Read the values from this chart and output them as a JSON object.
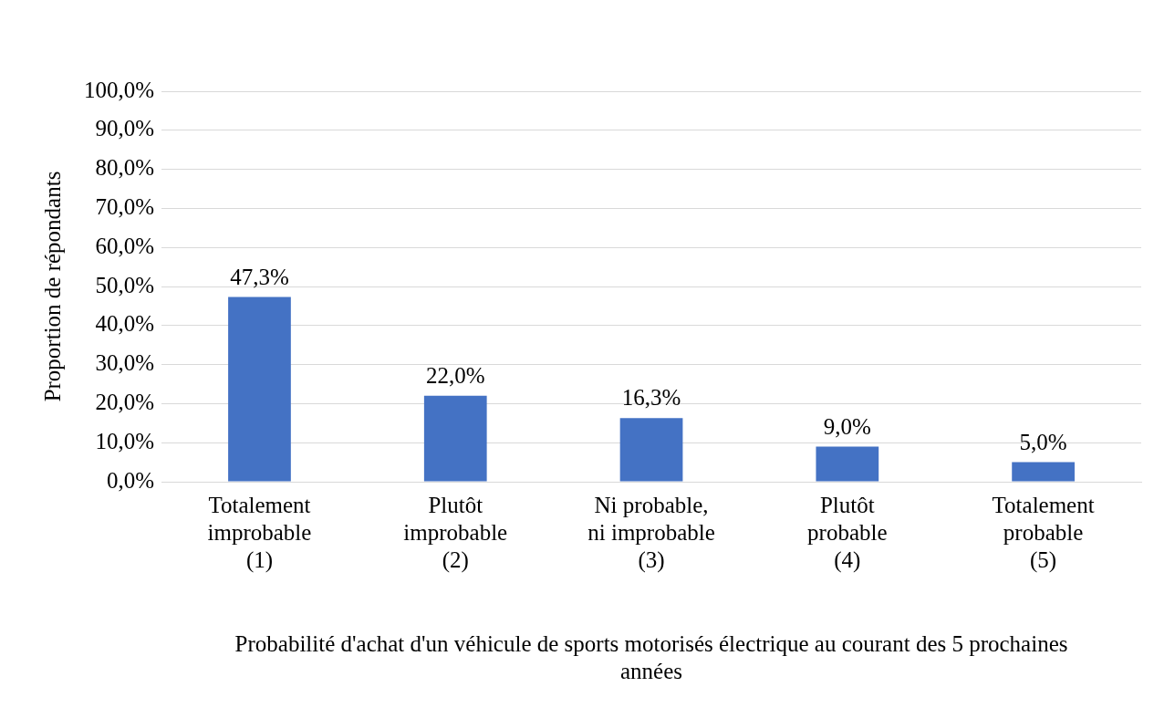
{
  "chart_data": {
    "type": "bar",
    "categories": [
      "Totalement\nimprobable\n(1)",
      "Plutôt\nimprobable\n(2)",
      "Ni probable,\nni improbable\n(3)",
      "Plutôt\nprobable\n(4)",
      "Totalement\nprobable\n(5)"
    ],
    "values": [
      47.3,
      22.0,
      16.3,
      9.0,
      5.0
    ],
    "value_labels": [
      "47,3%",
      "22,0%",
      "16,3%",
      "9,0%",
      "5,0%"
    ],
    "color": "#4472c4",
    "ylabel": "Proportion de répondants",
    "xlabel": "Probabilité d'achat d'un véhicule de sports motorisés électrique au courant des 5 prochaines années",
    "ylim": [
      0,
      100
    ],
    "yticks": [
      {
        "value": 0,
        "label": "0,0%"
      },
      {
        "value": 10,
        "label": "10,0%"
      },
      {
        "value": 20,
        "label": "20,0%"
      },
      {
        "value": 30,
        "label": "30,0%"
      },
      {
        "value": 40,
        "label": "40,0%"
      },
      {
        "value": 50,
        "label": "50,0%"
      },
      {
        "value": 60,
        "label": "60,0%"
      },
      {
        "value": 70,
        "label": "70,0%"
      },
      {
        "value": 80,
        "label": "80,0%"
      },
      {
        "value": 90,
        "label": "90,0%"
      },
      {
        "value": 100,
        "label": "100,0%"
      }
    ],
    "grid": "y",
    "legend": false
  }
}
